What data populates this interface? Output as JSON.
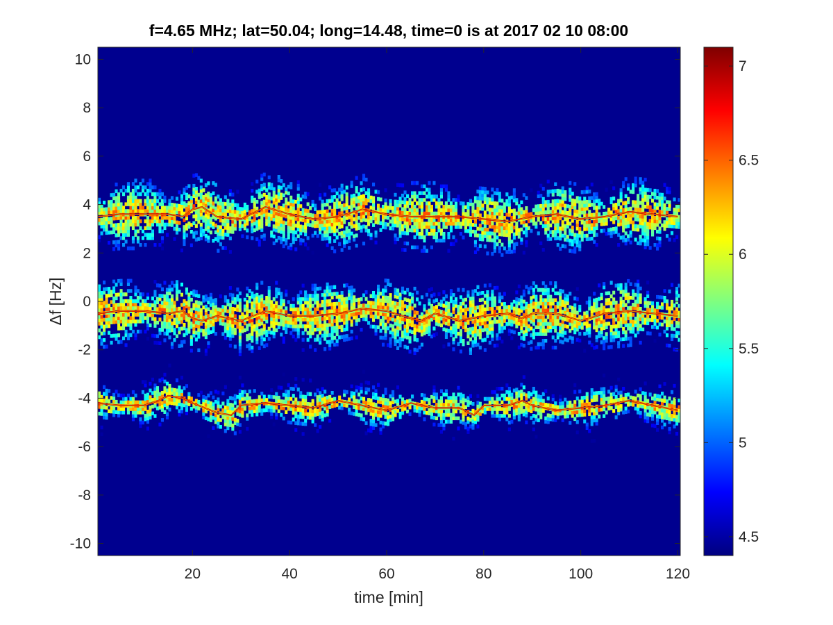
{
  "chart_data": {
    "type": "heatmap",
    "title": "f=4.65 MHz;  lat=50.04; long=14.48, time=0 is at 2017 02 10 08:00",
    "xlabel": "time [min]",
    "ylabel": "Δf [Hz]",
    "xlim": [
      0.5,
      120.5
    ],
    "ylim": [
      -10.5,
      10.5
    ],
    "xticks": [
      20,
      40,
      60,
      80,
      100,
      120
    ],
    "yticks": [
      10,
      8,
      6,
      4,
      2,
      0,
      -2,
      -4,
      -6,
      -8,
      -10
    ],
    "colorbar": {
      "colormap": "jet",
      "limits": [
        4.4,
        7.1
      ],
      "ticks": [
        7,
        6.5,
        6,
        5.5,
        5,
        4.5
      ]
    },
    "background_value": 4.45,
    "grid": false,
    "legend": "none",
    "traces": [
      {
        "name": "",
        "t": [
          0,
          5,
          10,
          15,
          18,
          20,
          22,
          25,
          30,
          35,
          40,
          45,
          50,
          55,
          60,
          65,
          70,
          75,
          80,
          85,
          90,
          95,
          100,
          105,
          110,
          115,
          120
        ],
        "f": [
          3.5,
          3.6,
          3.6,
          3.6,
          3.5,
          3.8,
          3.9,
          3.5,
          3.4,
          3.9,
          3.6,
          3.4,
          3.5,
          3.8,
          3.6,
          3.5,
          3.5,
          3.5,
          3.4,
          3.3,
          3.5,
          3.6,
          3.4,
          3.5,
          3.7,
          3.6,
          3.5
        ]
      },
      {
        "name": "",
        "t": [
          0,
          5,
          10,
          15,
          18,
          20,
          22,
          25,
          30,
          35,
          40,
          45,
          50,
          55,
          60,
          65,
          67,
          70,
          75,
          80,
          85,
          88,
          90,
          95,
          100,
          105,
          110,
          115,
          120
        ],
        "f": [
          -0.5,
          -0.4,
          -0.4,
          -0.5,
          -0.4,
          -0.7,
          -0.8,
          -0.6,
          -0.8,
          -0.4,
          -0.6,
          -0.6,
          -0.5,
          -0.3,
          -0.4,
          -0.7,
          -0.8,
          -0.5,
          -0.8,
          -0.6,
          -0.5,
          -0.7,
          -0.5,
          -0.5,
          -0.8,
          -0.5,
          -0.4,
          -0.5,
          -0.6
        ]
      },
      {
        "name": "",
        "t": [
          0,
          5,
          10,
          13,
          15,
          18,
          20,
          25,
          28,
          30,
          35,
          40,
          45,
          50,
          55,
          60,
          65,
          70,
          75,
          78,
          80,
          85,
          88,
          90,
          95,
          100,
          105,
          110,
          115,
          120
        ],
        "f": [
          -4.2,
          -4.3,
          -4.3,
          -4.1,
          -3.9,
          -4.0,
          -4.2,
          -4.6,
          -4.7,
          -4.3,
          -4.2,
          -4.3,
          -4.4,
          -4.1,
          -4.3,
          -4.5,
          -4.2,
          -4.4,
          -4.4,
          -4.7,
          -4.3,
          -4.3,
          -4.1,
          -4.3,
          -4.5,
          -4.4,
          -4.3,
          -4.1,
          -4.3,
          -4.5
        ]
      }
    ]
  }
}
